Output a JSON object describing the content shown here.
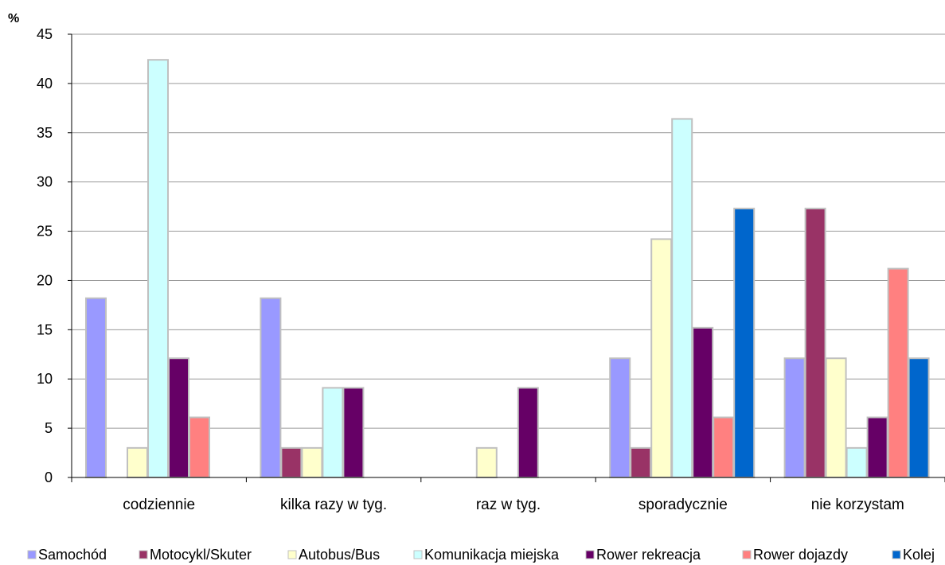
{
  "chart_data": {
    "type": "bar",
    "title": "",
    "xlabel": "",
    "ylabel": "%",
    "ylim": [
      0,
      45
    ],
    "y_ticks": [
      0,
      5,
      10,
      15,
      20,
      25,
      30,
      35,
      40,
      45
    ],
    "grid": true,
    "legend_position": "bottom",
    "categories": [
      "codziennie",
      "kilka razy w tyg.",
      "raz w tyg.",
      "sporadycznie",
      "nie korzystam"
    ],
    "series": [
      {
        "name": "Samochód",
        "color": "#9999ff",
        "values": [
          18.2,
          18.2,
          0,
          12.1,
          12.1
        ]
      },
      {
        "name": "Motocykl/Skuter",
        "color": "#993366",
        "values": [
          0,
          3,
          0,
          3,
          27.3
        ]
      },
      {
        "name": "Autobus/Bus",
        "color": "#ffffcc",
        "values": [
          3,
          3,
          3,
          24.2,
          12.1
        ]
      },
      {
        "name": "Komunikacja miejska",
        "color": "#ccffff",
        "values": [
          42.4,
          9.1,
          0,
          36.4,
          3
        ]
      },
      {
        "name": "Rower rekreacja",
        "color": "#660066",
        "values": [
          12.1,
          9.1,
          9.1,
          15.2,
          6.1
        ]
      },
      {
        "name": "Rower dojazdy",
        "color": "#ff8080",
        "values": [
          6.1,
          0,
          0,
          6.1,
          21.2
        ]
      },
      {
        "name": "Kolej",
        "color": "#0066cc",
        "values": [
          0,
          0,
          0,
          27.3,
          12.1
        ]
      }
    ]
  }
}
